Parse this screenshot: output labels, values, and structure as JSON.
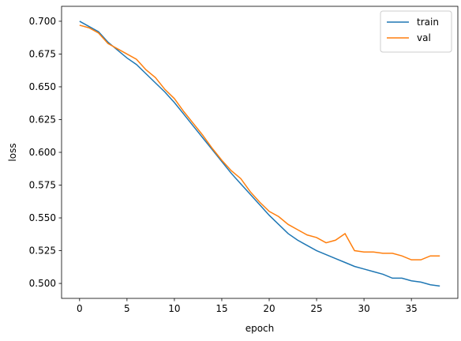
{
  "chart_data": {
    "type": "line",
    "xlabel": "epoch",
    "ylabel": "loss",
    "x": [
      0,
      1,
      2,
      3,
      4,
      5,
      6,
      7,
      8,
      9,
      10,
      11,
      12,
      13,
      14,
      15,
      16,
      17,
      18,
      19,
      20,
      21,
      22,
      23,
      24,
      25,
      26,
      27,
      28,
      29,
      30,
      31,
      32,
      33,
      34,
      35,
      36,
      37,
      38
    ],
    "series": [
      {
        "name": "train",
        "color": "#1f77b4",
        "values": [
          0.7,
          0.696,
          0.692,
          0.684,
          0.678,
          0.672,
          0.667,
          0.66,
          0.653,
          0.646,
          0.638,
          0.629,
          0.62,
          0.611,
          0.602,
          0.593,
          0.584,
          0.576,
          0.568,
          0.56,
          0.552,
          0.545,
          0.538,
          0.533,
          0.529,
          0.525,
          0.522,
          0.519,
          0.516,
          0.513,
          0.511,
          0.509,
          0.507,
          0.504,
          0.504,
          0.502,
          0.501,
          0.499,
          0.498
        ]
      },
      {
        "name": "val",
        "color": "#ff7f0e",
        "values": [
          0.697,
          0.695,
          0.691,
          0.683,
          0.679,
          0.675,
          0.671,
          0.663,
          0.657,
          0.648,
          0.641,
          0.631,
          0.622,
          0.613,
          0.603,
          0.594,
          0.586,
          0.58,
          0.57,
          0.562,
          0.555,
          0.551,
          0.545,
          0.541,
          0.537,
          0.535,
          0.531,
          0.533,
          0.538,
          0.525,
          0.524,
          0.524,
          0.523,
          0.523,
          0.521,
          0.518,
          0.518,
          0.521,
          0.521
        ]
      }
    ],
    "xlim": [
      -1.9,
      39.9
    ],
    "xticks": [
      0,
      5,
      10,
      15,
      20,
      25,
      30,
      35
    ],
    "ylim": [
      0.4886,
      0.7114
    ],
    "yticks": [
      {
        "value": 0.5,
        "label": "0.500"
      },
      0.525,
      {
        "value": 0.55,
        "label": "0.550"
      },
      0.575,
      {
        "value": 0.6,
        "label": "0.600"
      },
      0.625,
      {
        "value": 0.65,
        "label": "0.650"
      },
      0.675,
      {
        "value": 0.7,
        "label": "0.700"
      }
    ],
    "legend": "upper right",
    "grid": false
  }
}
